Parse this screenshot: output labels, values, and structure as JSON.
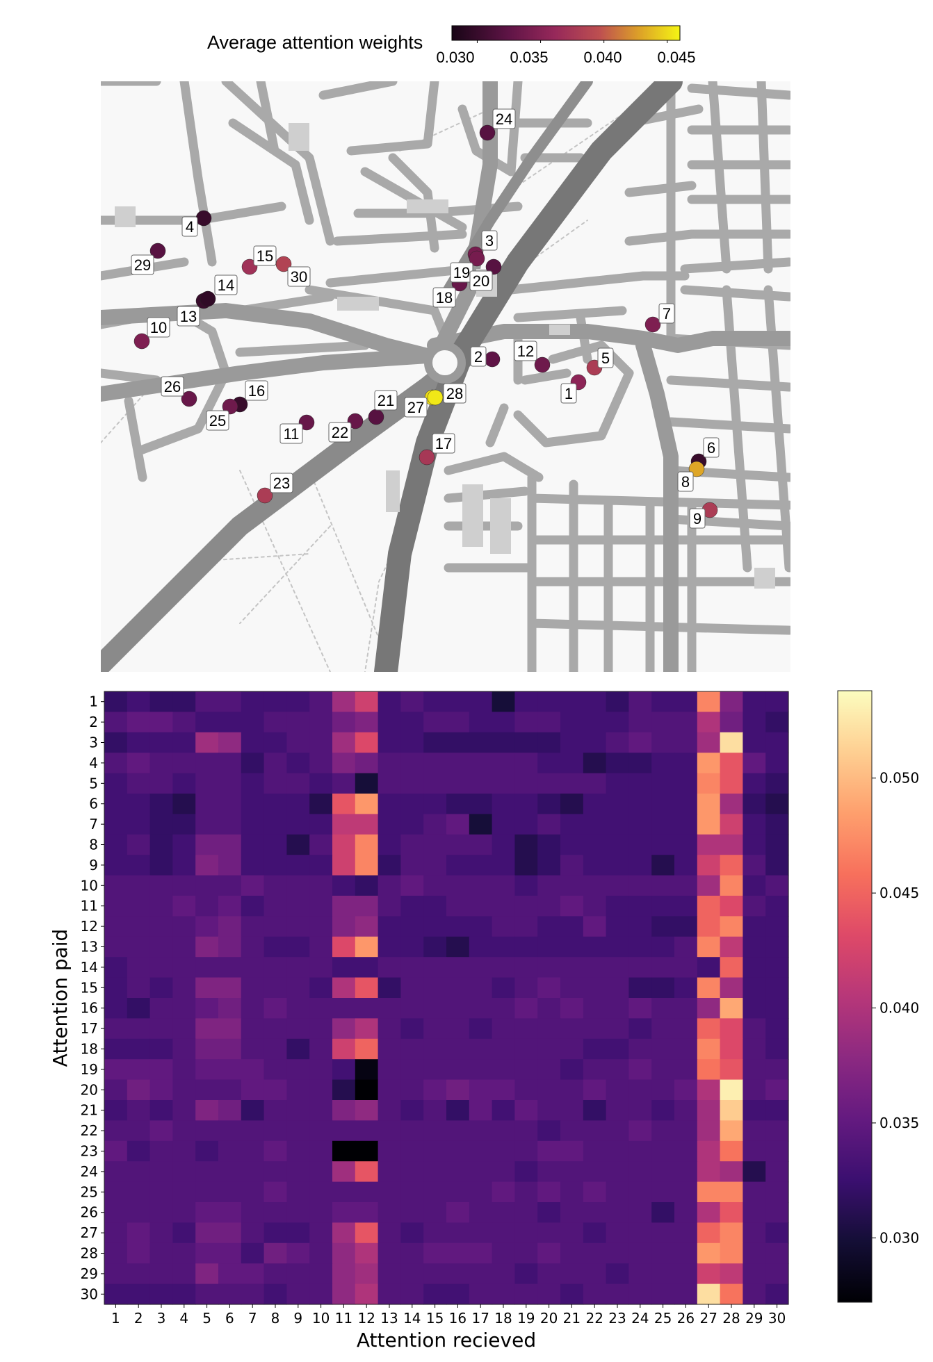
{
  "top_colorbar": {
    "label": "Average attention weights",
    "ticks": [
      "0.030",
      "0.035",
      "0.040",
      "0.045"
    ],
    "tick_values": [
      0.03,
      0.035,
      0.04,
      0.045
    ],
    "range": [
      0.028,
      0.046
    ],
    "colormap": "magma"
  },
  "map_nodes": [
    {
      "id": "1",
      "weight": 0.0355
    },
    {
      "id": "2",
      "weight": 0.0325
    },
    {
      "id": "3",
      "weight": 0.034
    },
    {
      "id": "4",
      "weight": 0.03
    },
    {
      "id": "5",
      "weight": 0.038
    },
    {
      "id": "6",
      "weight": 0.03
    },
    {
      "id": "7",
      "weight": 0.0345
    },
    {
      "id": "8",
      "weight": 0.043
    },
    {
      "id": "9",
      "weight": 0.038
    },
    {
      "id": "10",
      "weight": 0.0345
    },
    {
      "id": "11",
      "weight": 0.033
    },
    {
      "id": "12",
      "weight": 0.0335
    },
    {
      "id": "13",
      "weight": 0.03
    },
    {
      "id": "14",
      "weight": 0.0295
    },
    {
      "id": "15",
      "weight": 0.037
    },
    {
      "id": "16",
      "weight": 0.03
    },
    {
      "id": "17",
      "weight": 0.0375
    },
    {
      "id": "18",
      "weight": 0.033
    },
    {
      "id": "19",
      "weight": 0.034
    },
    {
      "id": "20",
      "weight": 0.032
    },
    {
      "id": "21",
      "weight": 0.032
    },
    {
      "id": "22",
      "weight": 0.033
    },
    {
      "id": "23",
      "weight": 0.038
    },
    {
      "id": "24",
      "weight": 0.032
    },
    {
      "id": "25",
      "weight": 0.0335
    },
    {
      "id": "26",
      "weight": 0.033
    },
    {
      "id": "27",
      "weight": 0.045
    },
    {
      "id": "28",
      "weight": 0.0455
    },
    {
      "id": "29",
      "weight": 0.032
    },
    {
      "id": "30",
      "weight": 0.0385
    }
  ],
  "chart_data": {
    "type": "heatmap",
    "xlabel": "Attention recieved",
    "ylabel": "Attention paid",
    "x": [
      "1",
      "2",
      "3",
      "4",
      "5",
      "6",
      "7",
      "8",
      "9",
      "10",
      "11",
      "12",
      "13",
      "14",
      "15",
      "16",
      "17",
      "18",
      "19",
      "20",
      "21",
      "22",
      "23",
      "24",
      "25",
      "26",
      "27",
      "28",
      "29",
      "30"
    ],
    "y": [
      "1",
      "2",
      "3",
      "4",
      "5",
      "6",
      "7",
      "8",
      "9",
      "10",
      "11",
      "12",
      "13",
      "14",
      "15",
      "16",
      "17",
      "18",
      "19",
      "20",
      "21",
      "22",
      "23",
      "24",
      "25",
      "26",
      "27",
      "28",
      "29",
      "30"
    ],
    "colorbar_ticks": [
      "0.030",
      "0.035",
      "0.040",
      "0.045",
      "0.050"
    ],
    "colorbar_tick_values": [
      0.03,
      0.035,
      0.04,
      0.045,
      0.05
    ],
    "zlim": [
      0.0272,
      0.0538
    ],
    "colormap": "magma",
    "values": [
      [
        0.032,
        0.033,
        0.032,
        0.032,
        0.034,
        0.034,
        0.033,
        0.033,
        0.033,
        0.034,
        0.039,
        0.042,
        0.033,
        0.034,
        0.033,
        0.033,
        0.033,
        0.03,
        0.033,
        0.033,
        0.033,
        0.033,
        0.032,
        0.034,
        0.033,
        0.033,
        0.047,
        0.037,
        0.033,
        0.033
      ],
      [
        0.034,
        0.035,
        0.035,
        0.034,
        0.033,
        0.033,
        0.033,
        0.034,
        0.034,
        0.034,
        0.036,
        0.037,
        0.033,
        0.033,
        0.034,
        0.034,
        0.033,
        0.033,
        0.034,
        0.034,
        0.033,
        0.033,
        0.033,
        0.034,
        0.034,
        0.034,
        0.04,
        0.036,
        0.033,
        0.032
      ],
      [
        0.032,
        0.033,
        0.033,
        0.033,
        0.039,
        0.038,
        0.033,
        0.033,
        0.034,
        0.034,
        0.039,
        0.043,
        0.033,
        0.033,
        0.032,
        0.032,
        0.032,
        0.032,
        0.032,
        0.032,
        0.033,
        0.033,
        0.034,
        0.035,
        0.034,
        0.034,
        0.039,
        0.052,
        0.033,
        0.033
      ],
      [
        0.034,
        0.035,
        0.034,
        0.034,
        0.034,
        0.034,
        0.032,
        0.034,
        0.033,
        0.034,
        0.037,
        0.036,
        0.034,
        0.034,
        0.034,
        0.034,
        0.034,
        0.034,
        0.034,
        0.033,
        0.033,
        0.031,
        0.032,
        0.032,
        0.033,
        0.033,
        0.048,
        0.044,
        0.035,
        0.033
      ],
      [
        0.033,
        0.034,
        0.034,
        0.033,
        0.034,
        0.034,
        0.033,
        0.034,
        0.034,
        0.033,
        0.034,
        0.03,
        0.034,
        0.034,
        0.034,
        0.034,
        0.034,
        0.034,
        0.034,
        0.034,
        0.034,
        0.034,
        0.033,
        0.033,
        0.033,
        0.033,
        0.047,
        0.044,
        0.033,
        0.032
      ],
      [
        0.033,
        0.033,
        0.032,
        0.031,
        0.034,
        0.034,
        0.033,
        0.033,
        0.033,
        0.031,
        0.044,
        0.048,
        0.033,
        0.033,
        0.033,
        0.032,
        0.032,
        0.033,
        0.033,
        0.032,
        0.031,
        0.033,
        0.033,
        0.033,
        0.033,
        0.033,
        0.048,
        0.039,
        0.032,
        0.031
      ],
      [
        0.033,
        0.033,
        0.032,
        0.032,
        0.034,
        0.034,
        0.033,
        0.033,
        0.033,
        0.033,
        0.041,
        0.041,
        0.033,
        0.033,
        0.034,
        0.035,
        0.03,
        0.033,
        0.033,
        0.034,
        0.033,
        0.033,
        0.033,
        0.033,
        0.033,
        0.033,
        0.048,
        0.042,
        0.033,
        0.032
      ],
      [
        0.033,
        0.034,
        0.032,
        0.033,
        0.036,
        0.036,
        0.033,
        0.033,
        0.031,
        0.034,
        0.042,
        0.047,
        0.033,
        0.034,
        0.034,
        0.034,
        0.034,
        0.033,
        0.031,
        0.032,
        0.033,
        0.033,
        0.033,
        0.033,
        0.033,
        0.033,
        0.04,
        0.04,
        0.033,
        0.032
      ],
      [
        0.033,
        0.033,
        0.032,
        0.033,
        0.037,
        0.036,
        0.033,
        0.033,
        0.033,
        0.033,
        0.042,
        0.047,
        0.032,
        0.034,
        0.034,
        0.033,
        0.033,
        0.033,
        0.031,
        0.032,
        0.034,
        0.033,
        0.033,
        0.033,
        0.031,
        0.033,
        0.042,
        0.045,
        0.034,
        0.032
      ],
      [
        0.034,
        0.034,
        0.034,
        0.034,
        0.034,
        0.034,
        0.035,
        0.034,
        0.034,
        0.034,
        0.033,
        0.032,
        0.034,
        0.035,
        0.034,
        0.034,
        0.034,
        0.034,
        0.033,
        0.034,
        0.034,
        0.034,
        0.034,
        0.034,
        0.034,
        0.034,
        0.039,
        0.047,
        0.033,
        0.034
      ],
      [
        0.034,
        0.034,
        0.034,
        0.035,
        0.034,
        0.035,
        0.033,
        0.034,
        0.034,
        0.034,
        0.037,
        0.037,
        0.034,
        0.033,
        0.033,
        0.034,
        0.034,
        0.034,
        0.034,
        0.034,
        0.035,
        0.034,
        0.033,
        0.033,
        0.033,
        0.033,
        0.045,
        0.043,
        0.034,
        0.033
      ],
      [
        0.034,
        0.034,
        0.034,
        0.034,
        0.035,
        0.036,
        0.034,
        0.034,
        0.034,
        0.034,
        0.037,
        0.038,
        0.033,
        0.033,
        0.033,
        0.033,
        0.033,
        0.034,
        0.034,
        0.033,
        0.033,
        0.035,
        0.033,
        0.033,
        0.032,
        0.032,
        0.045,
        0.047,
        0.033,
        0.033
      ],
      [
        0.034,
        0.034,
        0.034,
        0.034,
        0.037,
        0.036,
        0.034,
        0.033,
        0.033,
        0.034,
        0.043,
        0.048,
        0.033,
        0.033,
        0.032,
        0.031,
        0.033,
        0.033,
        0.033,
        0.033,
        0.033,
        0.033,
        0.033,
        0.033,
        0.033,
        0.034,
        0.047,
        0.041,
        0.033,
        0.033
      ],
      [
        0.033,
        0.034,
        0.034,
        0.034,
        0.034,
        0.034,
        0.034,
        0.034,
        0.034,
        0.034,
        0.033,
        0.033,
        0.034,
        0.034,
        0.034,
        0.034,
        0.034,
        0.034,
        0.034,
        0.034,
        0.034,
        0.034,
        0.034,
        0.034,
        0.034,
        0.034,
        0.033,
        0.045,
        0.033,
        0.033
      ],
      [
        0.033,
        0.034,
        0.033,
        0.034,
        0.037,
        0.037,
        0.034,
        0.034,
        0.034,
        0.033,
        0.04,
        0.044,
        0.032,
        0.034,
        0.034,
        0.034,
        0.034,
        0.033,
        0.034,
        0.035,
        0.034,
        0.034,
        0.034,
        0.032,
        0.032,
        0.033,
        0.047,
        0.039,
        0.033,
        0.033
      ],
      [
        0.033,
        0.032,
        0.034,
        0.034,
        0.035,
        0.036,
        0.034,
        0.035,
        0.034,
        0.034,
        0.034,
        0.034,
        0.034,
        0.034,
        0.034,
        0.034,
        0.034,
        0.034,
        0.035,
        0.034,
        0.035,
        0.034,
        0.034,
        0.035,
        0.034,
        0.034,
        0.038,
        0.049,
        0.033,
        0.033
      ],
      [
        0.034,
        0.034,
        0.034,
        0.034,
        0.037,
        0.037,
        0.034,
        0.034,
        0.034,
        0.034,
        0.038,
        0.04,
        0.034,
        0.033,
        0.034,
        0.034,
        0.033,
        0.034,
        0.034,
        0.034,
        0.034,
        0.034,
        0.034,
        0.033,
        0.034,
        0.034,
        0.045,
        0.043,
        0.034,
        0.033
      ],
      [
        0.033,
        0.033,
        0.033,
        0.034,
        0.036,
        0.036,
        0.034,
        0.034,
        0.032,
        0.034,
        0.042,
        0.045,
        0.034,
        0.034,
        0.034,
        0.034,
        0.034,
        0.034,
        0.034,
        0.034,
        0.034,
        0.033,
        0.033,
        0.034,
        0.034,
        0.034,
        0.047,
        0.043,
        0.034,
        0.033
      ],
      [
        0.035,
        0.035,
        0.035,
        0.034,
        0.035,
        0.035,
        0.035,
        0.034,
        0.034,
        0.034,
        0.033,
        0.028,
        0.034,
        0.034,
        0.034,
        0.034,
        0.034,
        0.034,
        0.034,
        0.034,
        0.033,
        0.034,
        0.034,
        0.035,
        0.034,
        0.034,
        0.046,
        0.044,
        0.034,
        0.034
      ],
      [
        0.034,
        0.036,
        0.035,
        0.034,
        0.034,
        0.034,
        0.035,
        0.035,
        0.034,
        0.034,
        0.031,
        0.027,
        0.034,
        0.034,
        0.035,
        0.036,
        0.035,
        0.035,
        0.034,
        0.034,
        0.034,
        0.035,
        0.034,
        0.034,
        0.034,
        0.035,
        0.04,
        0.053,
        0.034,
        0.035
      ],
      [
        0.033,
        0.034,
        0.033,
        0.034,
        0.037,
        0.036,
        0.032,
        0.034,
        0.034,
        0.034,
        0.037,
        0.038,
        0.034,
        0.033,
        0.034,
        0.032,
        0.035,
        0.033,
        0.035,
        0.034,
        0.034,
        0.032,
        0.034,
        0.034,
        0.033,
        0.034,
        0.039,
        0.051,
        0.033,
        0.033
      ],
      [
        0.034,
        0.034,
        0.035,
        0.034,
        0.034,
        0.034,
        0.034,
        0.034,
        0.034,
        0.034,
        0.034,
        0.034,
        0.034,
        0.034,
        0.034,
        0.034,
        0.034,
        0.034,
        0.034,
        0.033,
        0.034,
        0.034,
        0.034,
        0.035,
        0.034,
        0.034,
        0.039,
        0.049,
        0.034,
        0.034
      ],
      [
        0.035,
        0.033,
        0.034,
        0.034,
        0.033,
        0.034,
        0.034,
        0.035,
        0.034,
        0.034,
        0.027,
        0.027,
        0.034,
        0.034,
        0.034,
        0.034,
        0.034,
        0.034,
        0.034,
        0.035,
        0.035,
        0.034,
        0.034,
        0.034,
        0.034,
        0.034,
        0.04,
        0.046,
        0.034,
        0.034
      ],
      [
        0.034,
        0.034,
        0.034,
        0.034,
        0.034,
        0.034,
        0.034,
        0.034,
        0.034,
        0.034,
        0.039,
        0.044,
        0.034,
        0.034,
        0.034,
        0.034,
        0.034,
        0.034,
        0.033,
        0.034,
        0.034,
        0.034,
        0.034,
        0.034,
        0.034,
        0.034,
        0.04,
        0.039,
        0.031,
        0.034
      ],
      [
        0.034,
        0.034,
        0.034,
        0.034,
        0.034,
        0.034,
        0.034,
        0.035,
        0.034,
        0.034,
        0.034,
        0.034,
        0.034,
        0.034,
        0.034,
        0.034,
        0.034,
        0.035,
        0.034,
        0.035,
        0.034,
        0.035,
        0.034,
        0.034,
        0.034,
        0.034,
        0.047,
        0.047,
        0.034,
        0.034
      ],
      [
        0.034,
        0.034,
        0.034,
        0.034,
        0.035,
        0.035,
        0.034,
        0.034,
        0.034,
        0.034,
        0.035,
        0.035,
        0.034,
        0.034,
        0.034,
        0.035,
        0.034,
        0.034,
        0.034,
        0.033,
        0.034,
        0.034,
        0.034,
        0.034,
        0.032,
        0.034,
        0.04,
        0.044,
        0.034,
        0.034
      ],
      [
        0.034,
        0.035,
        0.034,
        0.033,
        0.036,
        0.036,
        0.034,
        0.033,
        0.033,
        0.034,
        0.039,
        0.044,
        0.034,
        0.033,
        0.034,
        0.034,
        0.034,
        0.034,
        0.034,
        0.034,
        0.034,
        0.033,
        0.034,
        0.034,
        0.034,
        0.034,
        0.045,
        0.047,
        0.034,
        0.033
      ],
      [
        0.034,
        0.035,
        0.034,
        0.034,
        0.035,
        0.035,
        0.033,
        0.036,
        0.035,
        0.034,
        0.038,
        0.04,
        0.034,
        0.034,
        0.035,
        0.035,
        0.035,
        0.034,
        0.034,
        0.035,
        0.034,
        0.034,
        0.034,
        0.034,
        0.034,
        0.034,
        0.048,
        0.047,
        0.034,
        0.034
      ],
      [
        0.034,
        0.034,
        0.034,
        0.034,
        0.037,
        0.035,
        0.035,
        0.034,
        0.034,
        0.034,
        0.038,
        0.039,
        0.034,
        0.034,
        0.034,
        0.034,
        0.034,
        0.034,
        0.033,
        0.034,
        0.034,
        0.034,
        0.033,
        0.034,
        0.034,
        0.034,
        0.042,
        0.041,
        0.034,
        0.034
      ],
      [
        0.033,
        0.033,
        0.033,
        0.033,
        0.034,
        0.034,
        0.034,
        0.033,
        0.034,
        0.034,
        0.038,
        0.04,
        0.034,
        0.034,
        0.033,
        0.033,
        0.034,
        0.034,
        0.034,
        0.034,
        0.033,
        0.034,
        0.034,
        0.034,
        0.034,
        0.034,
        0.052,
        0.046,
        0.034,
        0.033
      ]
    ]
  }
}
